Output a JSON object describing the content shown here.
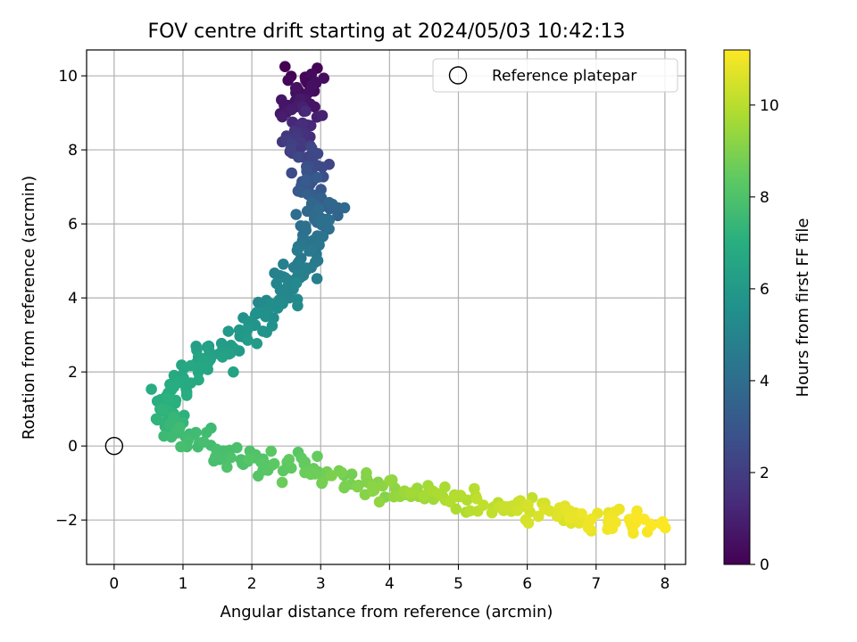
{
  "chart_data": {
    "type": "scatter",
    "title": "FOV centre drift starting at 2024/05/03 10:42:13",
    "xlabel": "Angular distance from reference (arcmin)",
    "ylabel": "Rotation from reference (arcmin)",
    "xlim": [
      -0.4,
      8.3
    ],
    "ylim": [
      -3.2,
      10.7
    ],
    "xticks": [
      0,
      1,
      2,
      3,
      4,
      5,
      6,
      7,
      8
    ],
    "yticks": [
      -2,
      0,
      2,
      4,
      6,
      8,
      10
    ],
    "xtick_labels": [
      "0",
      "1",
      "2",
      "3",
      "4",
      "5",
      "6",
      "7",
      "8"
    ],
    "ytick_labels": [
      "−2",
      "0",
      "2",
      "4",
      "6",
      "8",
      "10"
    ],
    "grid": true,
    "legend": {
      "placement": "top-right",
      "entries": [
        {
          "label": "Reference platepar",
          "marker": "open-circle",
          "x": 0,
          "y": 0
        }
      ]
    },
    "colorbar": {
      "label": "Hours from first FF file",
      "colormap": "viridis",
      "range": [
        0,
        11.2
      ],
      "ticks": [
        0,
        2,
        4,
        6,
        8,
        10
      ],
      "tick_labels": [
        "0",
        "2",
        "4",
        "6",
        "8",
        "10"
      ]
    },
    "series": [
      {
        "color_by": "hours",
        "path_xy_hours": [
          [
            2.6,
            10.0,
            0.0
          ],
          [
            2.9,
            9.8,
            0.3
          ],
          [
            2.5,
            9.2,
            0.7
          ],
          [
            2.8,
            8.8,
            1.2
          ],
          [
            2.6,
            8.2,
            1.8
          ],
          [
            2.9,
            7.7,
            2.4
          ],
          [
            2.8,
            7.0,
            3.0
          ],
          [
            3.15,
            6.5,
            3.6
          ],
          [
            2.95,
            5.8,
            4.1
          ],
          [
            2.75,
            5.1,
            4.5
          ],
          [
            2.5,
            4.4,
            5.0
          ],
          [
            2.3,
            3.7,
            5.4
          ],
          [
            2.0,
            3.2,
            5.8
          ],
          [
            1.6,
            2.6,
            6.2
          ],
          [
            1.2,
            2.1,
            6.6
          ],
          [
            0.9,
            1.5,
            6.9
          ],
          [
            0.7,
            0.8,
            7.2
          ],
          [
            1.0,
            0.3,
            7.6
          ],
          [
            1.6,
            -0.3,
            7.9
          ],
          [
            2.2,
            -0.4,
            8.2
          ],
          [
            2.9,
            -0.7,
            8.6
          ],
          [
            3.5,
            -1.0,
            9.0
          ],
          [
            4.2,
            -1.2,
            9.4
          ],
          [
            4.9,
            -1.4,
            9.8
          ],
          [
            5.6,
            -1.6,
            10.2
          ],
          [
            6.3,
            -1.8,
            10.6
          ],
          [
            7.0,
            -2.0,
            10.9
          ],
          [
            7.9,
            -2.2,
            11.2
          ]
        ],
        "point_count": 500,
        "jitter_arcmin": 0.15
      }
    ]
  }
}
